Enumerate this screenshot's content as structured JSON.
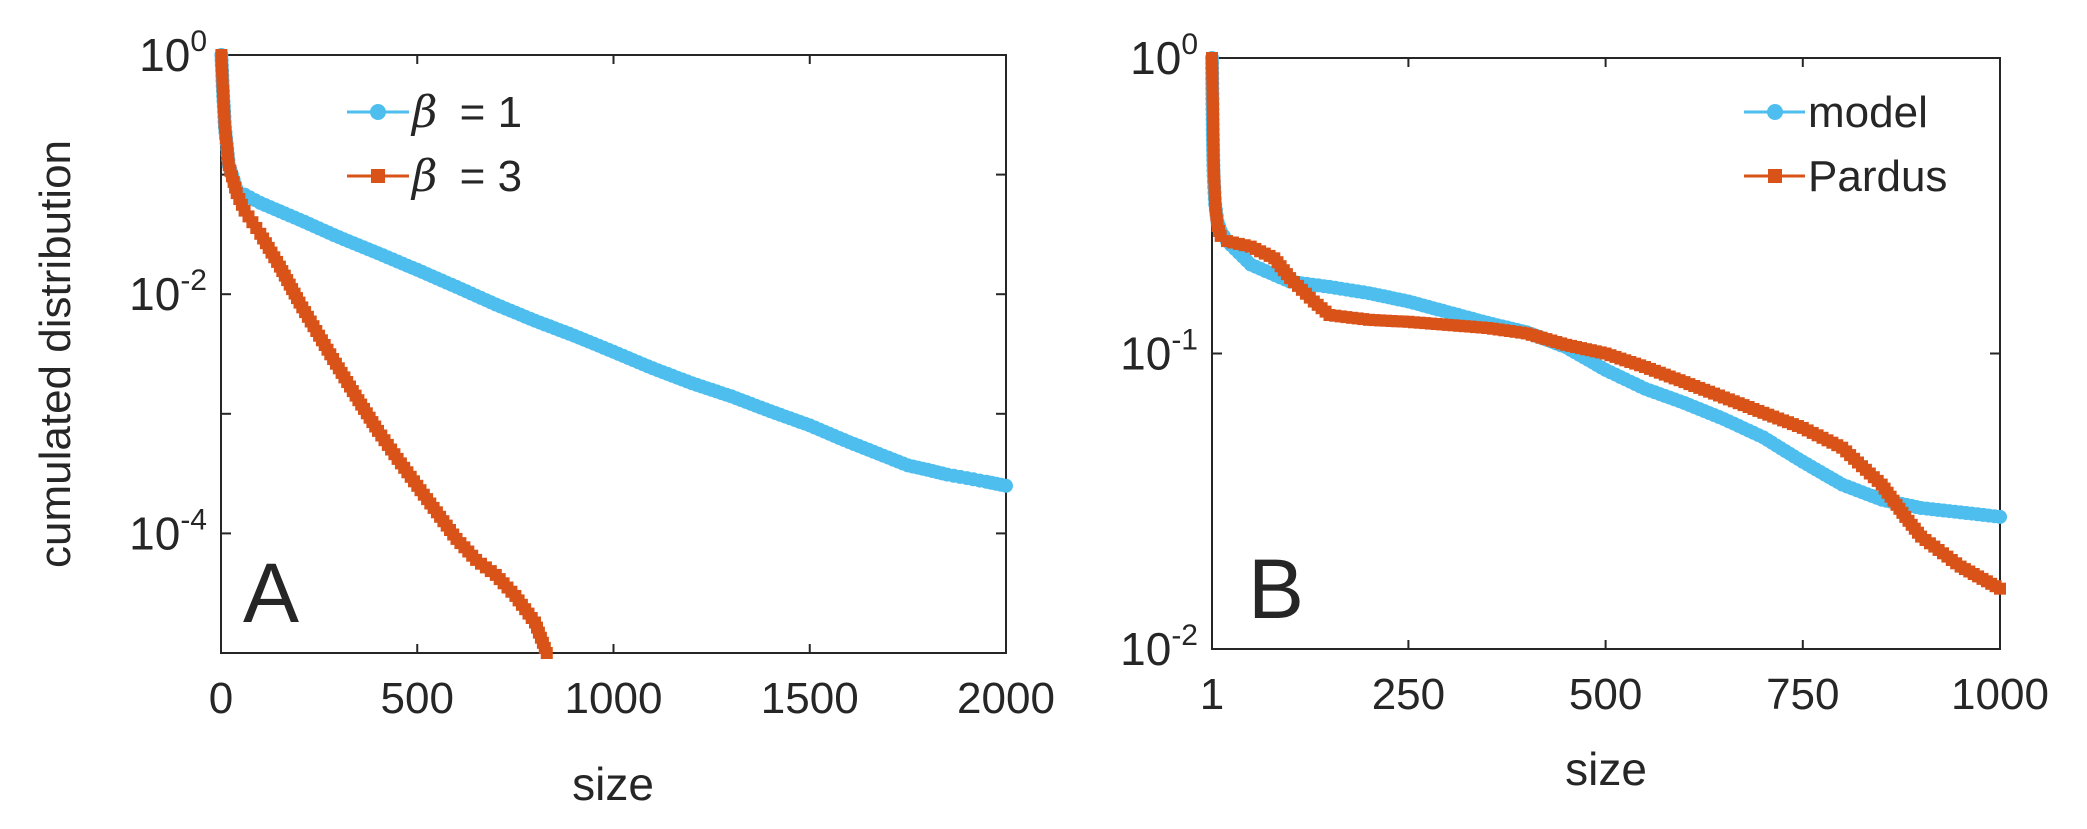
{
  "colors": {
    "series_blue": "#4DBEEE",
    "series_orange": "#D95319",
    "axis": "#262626",
    "background": "#FFFFFF"
  },
  "chart_data": [
    {
      "type": "line",
      "panel_label": "A",
      "xlabel": "size",
      "ylabel": "cumulated distribution",
      "yscale": "log",
      "xlim": [
        0,
        2000
      ],
      "ylim": [
        1e-05,
        1
      ],
      "xticks": [
        0,
        500,
        1000,
        1500,
        2000
      ],
      "xtick_labels": [
        "0",
        "500",
        "1000",
        "1500",
        "2000"
      ],
      "yticks": [
        0.0001,
        0.01,
        1
      ],
      "ytick_labels": [
        {
          "base": "10",
          "exp": "-4"
        },
        {
          "base": "10",
          "exp": "-2"
        },
        {
          "base": "10",
          "exp": "0"
        }
      ],
      "legend_position": "top-left",
      "series": [
        {
          "name": "β = 1",
          "legend_symbol": "β",
          "legend_text": "= 1",
          "color": "#4DBEEE",
          "marker": "circle",
          "x": [
            1,
            5,
            10,
            20,
            40,
            60,
            100,
            200,
            300,
            400,
            500,
            600,
            700,
            800,
            900,
            1000,
            1100,
            1200,
            1300,
            1400,
            1500,
            1550,
            1600,
            1650,
            1700,
            1750,
            1800,
            1850,
            1900,
            1950,
            2000
          ],
          "y": [
            1,
            0.5,
            0.25,
            0.12,
            0.075,
            0.068,
            0.058,
            0.042,
            0.03,
            0.022,
            0.016,
            0.0115,
            0.0082,
            0.006,
            0.0045,
            0.0033,
            0.0024,
            0.0018,
            0.0014,
            0.00105,
            0.0008,
            0.00068,
            0.00058,
            0.0005,
            0.00043,
            0.00037,
            0.00034,
            0.00031,
            0.00029,
            0.00027,
            0.00025
          ]
        },
        {
          "name": "β = 3",
          "legend_symbol": "β",
          "legend_text": "= 3",
          "color": "#D95319",
          "marker": "square",
          "x": [
            1,
            5,
            10,
            20,
            40,
            60,
            80,
            100,
            150,
            200,
            250,
            300,
            350,
            400,
            450,
            500,
            550,
            600,
            650,
            700,
            750,
            800,
            830
          ],
          "y": [
            1,
            0.5,
            0.25,
            0.12,
            0.07,
            0.05,
            0.04,
            0.032,
            0.017,
            0.0085,
            0.0045,
            0.0024,
            0.0013,
            0.00072,
            0.00042,
            0.00025,
            0.00015,
            9e-05,
            6e-05,
            4.5e-05,
            3e-05,
            1.8e-05,
            1e-05
          ]
        }
      ]
    },
    {
      "type": "line",
      "panel_label": "B",
      "xlabel": "size",
      "ylabel": "",
      "yscale": "log",
      "xlim": [
        1,
        1000
      ],
      "ylim": [
        0.01,
        1
      ],
      "xticks": [
        1,
        250,
        500,
        750,
        1000
      ],
      "xtick_labels": [
        "1",
        "250",
        "500",
        "750",
        "1000"
      ],
      "yticks": [
        0.01,
        0.1,
        1
      ],
      "ytick_labels": [
        {
          "base": "10",
          "exp": "-2"
        },
        {
          "base": "10",
          "exp": "-1"
        },
        {
          "base": "10",
          "exp": "0"
        }
      ],
      "legend_position": "top-right",
      "series": [
        {
          "name": "model",
          "legend_text": "model",
          "color": "#4DBEEE",
          "marker": "circle",
          "x": [
            1,
            2,
            3,
            5,
            8,
            12,
            20,
            50,
            100,
            150,
            200,
            250,
            300,
            350,
            400,
            450,
            500,
            550,
            600,
            650,
            700,
            750,
            800,
            850,
            900,
            950,
            1000
          ],
          "y": [
            1,
            0.55,
            0.4,
            0.32,
            0.28,
            0.26,
            0.24,
            0.2,
            0.175,
            0.168,
            0.16,
            0.15,
            0.138,
            0.127,
            0.118,
            0.105,
            0.088,
            0.076,
            0.068,
            0.06,
            0.052,
            0.043,
            0.036,
            0.032,
            0.03,
            0.029,
            0.028
          ]
        },
        {
          "name": "Pardus",
          "legend_text": "Pardus",
          "color": "#D95319",
          "marker": "square",
          "x": [
            1,
            2,
            3,
            5,
            8,
            12,
            20,
            50,
            80,
            100,
            130,
            150,
            200,
            250,
            300,
            350,
            400,
            450,
            500,
            550,
            600,
            650,
            700,
            750,
            800,
            850,
            880,
            900,
            950,
            1000
          ],
          "y": [
            1,
            0.7,
            0.45,
            0.32,
            0.27,
            0.25,
            0.24,
            0.23,
            0.21,
            0.18,
            0.15,
            0.135,
            0.13,
            0.128,
            0.125,
            0.122,
            0.117,
            0.107,
            0.1,
            0.09,
            0.08,
            0.071,
            0.063,
            0.056,
            0.048,
            0.036,
            0.028,
            0.024,
            0.019,
            0.016
          ]
        }
      ]
    }
  ]
}
